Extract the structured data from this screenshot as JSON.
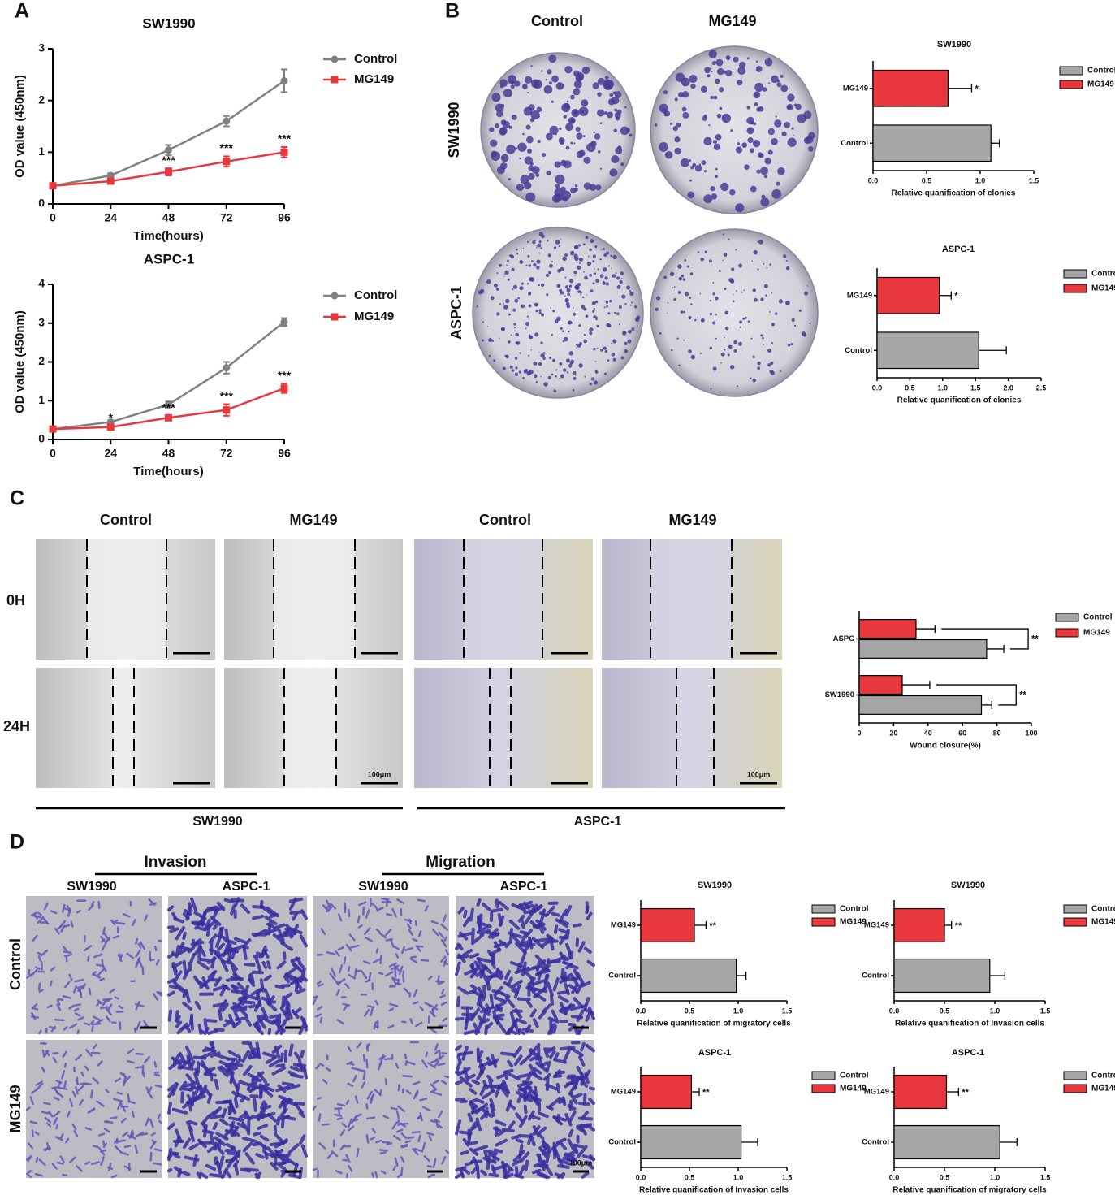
{
  "panels": [
    "A",
    "B",
    "C",
    "D"
  ],
  "colonies": {
    "columns": [
      "Control",
      "MG149"
    ],
    "rows": [
      "SW1990",
      "ASPC-1"
    ]
  },
  "wound": {
    "columns": [
      "Control",
      "MG149",
      "Control",
      "MG149"
    ],
    "rows": [
      "0H",
      "24H"
    ],
    "groups": [
      "SW1990",
      "ASPC-1"
    ],
    "scale_bar": "100μm"
  },
  "transwell": {
    "groups": [
      "Invasion",
      "Migration"
    ],
    "columns": [
      "SW1990",
      "ASPC-1",
      "SW1990",
      "ASPC-1"
    ],
    "rows": [
      "Control",
      "MG149"
    ],
    "scale_bar": "100μm"
  },
  "chart_data": [
    {
      "type": "line",
      "title": "SW1990",
      "xlabel": "Time(hours)",
      "ylabel": "OD value (450nm)",
      "x": [
        0,
        24,
        48,
        72,
        96
      ],
      "xlim": [
        0,
        96
      ],
      "xticks": [
        0,
        24,
        48,
        72,
        96
      ],
      "ylim": [
        0,
        3
      ],
      "yticks": [
        0,
        1,
        2,
        3
      ],
      "series": [
        {
          "name": "Control",
          "color": "#808080",
          "values": [
            0.35,
            0.55,
            1.04,
            1.6,
            2.38
          ],
          "errors": [
            0.02,
            0.04,
            0.1,
            0.1,
            0.22
          ]
        },
        {
          "name": "MG149",
          "color": "#e8383d",
          "values": [
            0.35,
            0.44,
            0.62,
            0.82,
            1.0
          ],
          "errors": [
            0.02,
            0.03,
            0.07,
            0.1,
            0.1
          ],
          "significance": [
            null,
            null,
            "***",
            "***",
            "***"
          ]
        }
      ]
    },
    {
      "type": "line",
      "title": "ASPC-1",
      "xlabel": "Time(hours)",
      "ylabel": "OD value (450nm)",
      "x": [
        0,
        24,
        48,
        72,
        96
      ],
      "xlim": [
        0,
        96
      ],
      "xticks": [
        0,
        24,
        48,
        72,
        96
      ],
      "ylim": [
        0,
        4
      ],
      "yticks": [
        0,
        1,
        2,
        3,
        4
      ],
      "series": [
        {
          "name": "Control",
          "color": "#808080",
          "values": [
            0.27,
            0.45,
            0.9,
            1.85,
            3.03
          ],
          "errors": [
            0.02,
            0.04,
            0.08,
            0.15,
            0.1
          ]
        },
        {
          "name": "MG149",
          "color": "#e8383d",
          "values": [
            0.27,
            0.32,
            0.56,
            0.76,
            1.32
          ],
          "errors": [
            0.02,
            0.03,
            0.05,
            0.15,
            0.12
          ],
          "significance": [
            null,
            "*",
            "***",
            "***",
            "***"
          ]
        }
      ]
    },
    {
      "type": "barh",
      "title": "SW1990",
      "xlabel": "Relative quanification of clonies",
      "categories": [
        "MG149",
        "Control"
      ],
      "xlim": [
        0,
        1.5
      ],
      "xticks": [
        {
          "value": 0,
          "label": "0.0"
        },
        0.5,
        {
          "value": 1,
          "label": "1.0"
        },
        1.5
      ],
      "series": [
        {
          "name": "Control",
          "color": "#a6a6a6",
          "values": [
            null,
            1.1
          ],
          "errors": [
            null,
            0.08
          ]
        },
        {
          "name": "MG149",
          "color": "#e8383d",
          "values": [
            0.7,
            null
          ],
          "errors": [
            0.22,
            null
          ],
          "significance": [
            "*",
            null
          ]
        }
      ]
    },
    {
      "type": "barh",
      "title": "ASPC-1",
      "xlabel": "Relative quanification of clonies",
      "categories": [
        "MG149",
        "Control"
      ],
      "xlim": [
        0,
        2.5
      ],
      "xticks": [
        {
          "value": 0,
          "label": "0.0"
        },
        0.5,
        {
          "value": 1,
          "label": "1.0"
        },
        1.5,
        {
          "value": 2,
          "label": "2.0"
        },
        2.5
      ],
      "series": [
        {
          "name": "Control",
          "color": "#a6a6a6",
          "values": [
            null,
            1.55
          ],
          "errors": [
            null,
            0.42
          ]
        },
        {
          "name": "MG149",
          "color": "#e8383d",
          "values": [
            0.95,
            null
          ],
          "errors": [
            0.18,
            null
          ],
          "significance": [
            "*",
            null
          ]
        }
      ]
    },
    {
      "type": "barh",
      "xlabel": "Wound closure(%)",
      "categories": [
        "ASPC",
        "SW1990"
      ],
      "xlim": [
        0,
        100
      ],
      "xticks": [
        0,
        20,
        40,
        60,
        80,
        100
      ],
      "series": [
        {
          "name": "Control",
          "color": "#a6a6a6",
          "values": [
            74,
            71
          ],
          "errors": [
            10,
            6
          ]
        },
        {
          "name": "MG149",
          "color": "#e8383d",
          "values": [
            33,
            25
          ],
          "errors": [
            11,
            16
          ],
          "significance": [
            "**",
            "**"
          ]
        }
      ]
    },
    {
      "type": "barh",
      "title": "SW1990",
      "xlabel": "Relative quanification of migratory cells",
      "categories": [
        "MG149",
        "Control"
      ],
      "xlim": [
        0,
        1.5
      ],
      "xticks": [
        {
          "value": 0,
          "label": "0.0"
        },
        0.5,
        {
          "value": 1,
          "label": "1.0"
        },
        1.5
      ],
      "series": [
        {
          "name": "Control",
          "color": "#a6a6a6",
          "values": [
            null,
            0.98
          ],
          "errors": [
            null,
            0.1
          ]
        },
        {
          "name": "MG149",
          "color": "#e8383d",
          "values": [
            0.55,
            null
          ],
          "errors": [
            0.12,
            null
          ],
          "significance": [
            "**",
            null
          ]
        }
      ]
    },
    {
      "type": "barh",
      "title": "SW1990",
      "xlabel": "Relative quanification of Invasion cells",
      "categories": [
        "MG149",
        "Control"
      ],
      "xlim": [
        0,
        1.5
      ],
      "xticks": [
        {
          "value": 0,
          "label": "0.0"
        },
        0.5,
        {
          "value": 1,
          "label": "1.0"
        },
        1.5
      ],
      "series": [
        {
          "name": "Control",
          "color": "#a6a6a6",
          "values": [
            null,
            0.95
          ],
          "errors": [
            null,
            0.15
          ]
        },
        {
          "name": "MG149",
          "color": "#e8383d",
          "values": [
            0.5,
            null
          ],
          "errors": [
            0.07,
            null
          ],
          "significance": [
            "**",
            null
          ]
        }
      ]
    },
    {
      "type": "barh",
      "title": "ASPC-1",
      "xlabel": "Relative quanification of Invasion cells",
      "categories": [
        "MG149",
        "Control"
      ],
      "xlim": [
        0,
        1.5
      ],
      "xticks": [
        {
          "value": 0,
          "label": "0.0"
        },
        0.5,
        {
          "value": 1,
          "label": "1.0"
        },
        1.5
      ],
      "series": [
        {
          "name": "Control",
          "color": "#a6a6a6",
          "values": [
            null,
            1.03
          ],
          "errors": [
            null,
            0.17
          ]
        },
        {
          "name": "MG149",
          "color": "#e8383d",
          "values": [
            0.52,
            null
          ],
          "errors": [
            0.08,
            null
          ],
          "significance": [
            "**",
            null
          ]
        }
      ]
    },
    {
      "type": "barh",
      "title": "ASPC-1",
      "xlabel": "Relative quanification of migratory cells",
      "categories": [
        "MG149",
        "Control"
      ],
      "xlim": [
        0,
        1.5
      ],
      "xticks": [
        {
          "value": 0,
          "label": "0.0"
        },
        0.5,
        {
          "value": 1,
          "label": "1.0"
        },
        1.5
      ],
      "series": [
        {
          "name": "Control",
          "color": "#a6a6a6",
          "values": [
            null,
            1.05
          ],
          "errors": [
            null,
            0.17
          ]
        },
        {
          "name": "MG149",
          "color": "#e8383d",
          "values": [
            0.52,
            null
          ],
          "errors": [
            0.12,
            null
          ],
          "significance": [
            "**",
            null
          ]
        }
      ]
    }
  ]
}
